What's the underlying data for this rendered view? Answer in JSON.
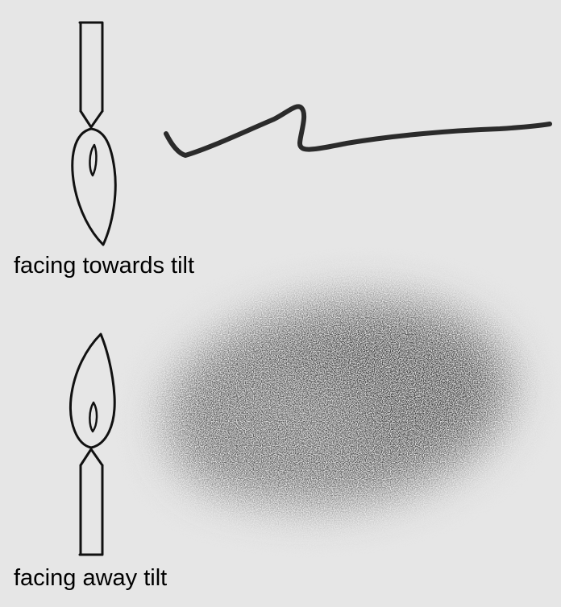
{
  "captions": {
    "towards": "facing towards tilt",
    "away": "facing away tilt"
  },
  "icons": {
    "pencil_down": "pencil-tip-down-icon",
    "pencil_up": "pencil-tip-up-icon"
  },
  "colors": {
    "background": "#e6e6e6",
    "ink": "#111111",
    "stroke": "#2b2b2b",
    "shading": "#555555"
  }
}
